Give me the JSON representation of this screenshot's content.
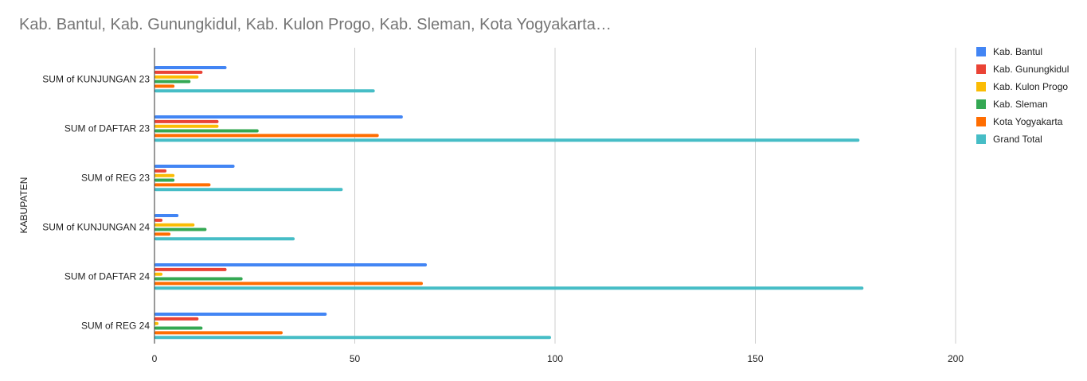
{
  "chart_data": {
    "type": "bar",
    "orientation": "horizontal",
    "title": "Kab. Bantul, Kab. Gunungkidul, Kab. Kulon Progo, Kab. Sleman, Kota Yogyakarta…",
    "ylabel": "KABUPATEN",
    "xlabel": "",
    "categories": [
      "SUM of KUNJUNGAN 23",
      "SUM of DAFTAR 23",
      "SUM of REG 23",
      "SUM of KUNJUNGAN 24",
      "SUM of DAFTAR 24",
      "SUM of REG 24"
    ],
    "series": [
      {
        "name": "Kab. Bantul",
        "color": "#4285f4",
        "values": [
          18,
          62,
          20,
          6,
          68,
          43
        ]
      },
      {
        "name": "Kab. Gunungkidul",
        "color": "#ea4335",
        "values": [
          12,
          16,
          3,
          2,
          18,
          11
        ]
      },
      {
        "name": "Kab. Kulon Progo",
        "color": "#fbbc04",
        "values": [
          11,
          16,
          5,
          10,
          2,
          1
        ]
      },
      {
        "name": "Kab. Sleman",
        "color": "#34a853",
        "values": [
          9,
          26,
          5,
          13,
          22,
          12
        ]
      },
      {
        "name": "Kota Yogyakarta",
        "color": "#ff6d01",
        "values": [
          5,
          56,
          14,
          4,
          67,
          32
        ]
      },
      {
        "name": "Grand Total",
        "color": "#46bdc6",
        "values": [
          55,
          176,
          47,
          35,
          177,
          99
        ]
      }
    ],
    "xlim": [
      0,
      200
    ],
    "xticks": [
      0,
      50,
      100,
      150,
      200
    ],
    "grid": true,
    "legend_position": "right"
  }
}
